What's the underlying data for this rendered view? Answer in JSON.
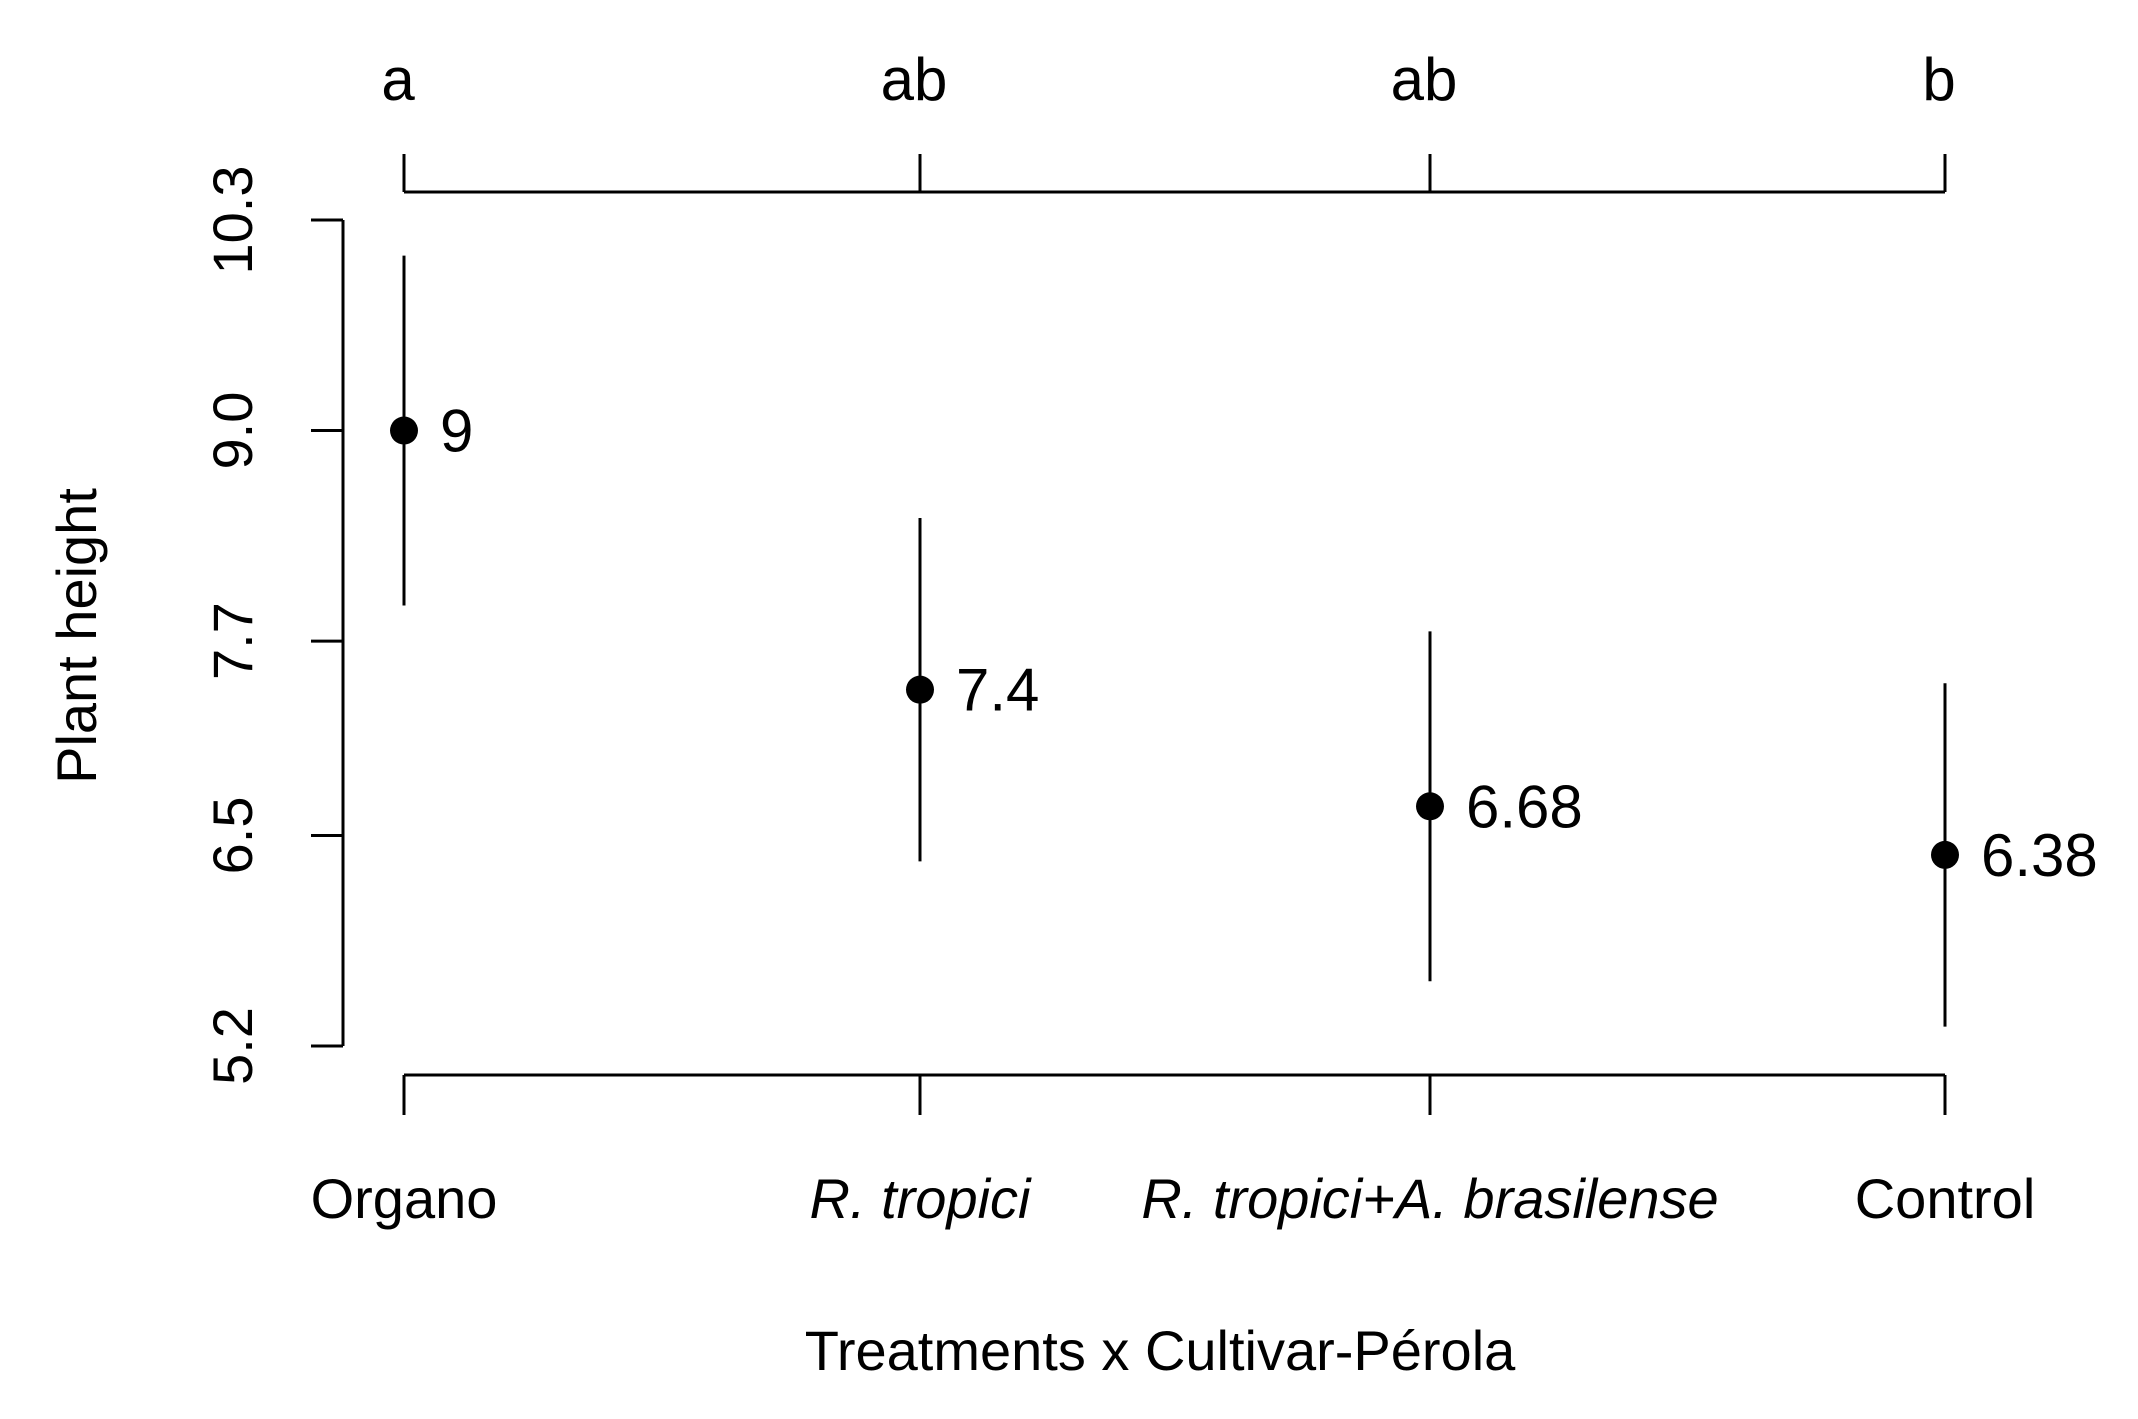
{
  "chart_data": {
    "type": "scatter",
    "subtype": "mean-with-intervals",
    "title": "",
    "xlabel": "Treatments x Cultivar-Pérola",
    "ylabel": "Plant height",
    "ylim": [
      5.2,
      10.3
    ],
    "yticks": [
      "5.2",
      "6.5",
      "7.7",
      "9.0",
      "10.3"
    ],
    "grid": false,
    "legend": "none",
    "colors": {
      "ink": "#000000",
      "background": "#ffffff"
    },
    "categories": [
      {
        "label": "Organo",
        "italic": false
      },
      {
        "label": "R. tropici",
        "italic": true
      },
      {
        "label": "R. tropici+A. brasilense",
        "italic": true
      },
      {
        "label": "Control",
        "italic": false
      }
    ],
    "series": [
      {
        "values": [
          9.0,
          7.4,
          6.68,
          6.38
        ],
        "value_labels": [
          "9",
          "7.4",
          "6.68",
          "6.38"
        ],
        "lower": [
          7.92,
          6.34,
          5.6,
          5.32
        ],
        "upper": [
          10.08,
          8.46,
          7.76,
          7.44
        ]
      }
    ],
    "significance_letters": [
      "a",
      "ab",
      "ab",
      "b"
    ]
  }
}
